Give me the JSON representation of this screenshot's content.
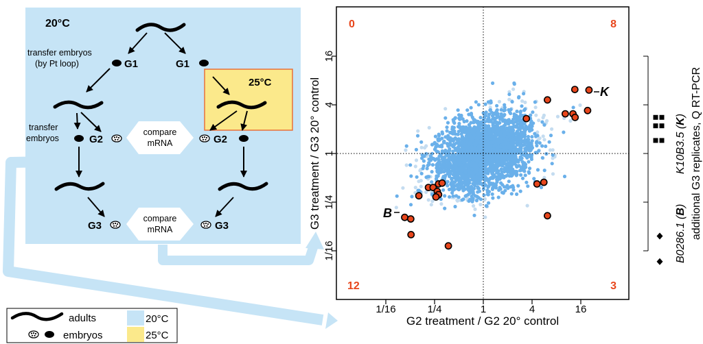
{
  "schematic": {
    "temp_20": "20°C",
    "temp_25": "25°C",
    "transfer_embryos_loop_1": "transfer embryos",
    "transfer_embryos_loop_2": "(by Pt loop)",
    "transfer_embryos_2_1": "transfer",
    "transfer_embryos_2_2": "embryos",
    "gen_g1": "G1",
    "gen_g2": "G2",
    "gen_g3": "G3",
    "compare_1": "compare",
    "compare_2": "mRNA"
  },
  "legend": {
    "adults": "adults",
    "embryos": "embryos",
    "temp_20": "20°C",
    "temp_25": "25°C"
  },
  "colors": {
    "box_20": "#c6e4f6",
    "box_25": "#fbe98b",
    "box_25_border": "#e8703a",
    "points": "#6ab0ea",
    "points_light": "#c4dcf0",
    "highlight_fill": "#e8461c",
    "quadrant_count": "#e8461c"
  },
  "scatter": {
    "xlabel": "G2 treatment / G2 20° control",
    "ylabel": "G3 treatment / G3 20° control",
    "x_ticks": [
      "1/16",
      "1/4",
      "1",
      "4",
      "16"
    ],
    "y_ticks": [
      "1/16",
      "1/4",
      "1",
      "4",
      "16"
    ],
    "quadrant_counts": {
      "top_left": "0",
      "top_right": "8",
      "bottom_left": "12",
      "bottom_right": "3"
    },
    "label_k": "K",
    "label_b": "B"
  },
  "chart_data": {
    "type": "scatter",
    "xlabel": "G2 treatment / G2 20° control",
    "ylabel": "G3 treatment / G3 20° control",
    "x_scale": "log2",
    "y_scale": "log2",
    "xlim": [
      0.03,
      64
    ],
    "ylim": [
      0.03,
      64
    ],
    "reference_lines": {
      "x": 1,
      "y": 1,
      "style": "dotted"
    },
    "quadrant_counts": {
      "top_left": 0,
      "top_right": 8,
      "bottom_left": 12,
      "bottom_right": 3
    },
    "highlighted_points": [
      {
        "x": 20.2,
        "y": 6.1,
        "label": "K"
      },
      {
        "x": 13.5,
        "y": 6.2
      },
      {
        "x": 6.2,
        "y": 4.6
      },
      {
        "x": 3.4,
        "y": 2.7
      },
      {
        "x": 10.3,
        "y": 3.1
      },
      {
        "x": 12.8,
        "y": 3.1
      },
      {
        "x": 13.6,
        "y": 2.8
      },
      {
        "x": 19.4,
        "y": 3.4
      },
      {
        "x": 4.6,
        "y": 0.42
      },
      {
        "x": 5.6,
        "y": 0.44
      },
      {
        "x": 6.2,
        "y": 0.17
      },
      {
        "x": 0.107,
        "y": 0.162,
        "label": "B"
      },
      {
        "x": 0.127,
        "y": 0.155
      },
      {
        "x": 0.128,
        "y": 0.099
      },
      {
        "x": 0.16,
        "y": 0.3
      },
      {
        "x": 0.21,
        "y": 0.38
      },
      {
        "x": 0.24,
        "y": 0.38
      },
      {
        "x": 0.27,
        "y": 0.34
      },
      {
        "x": 0.28,
        "y": 0.31
      },
      {
        "x": 0.26,
        "y": 0.29
      },
      {
        "x": 0.28,
        "y": 0.42
      },
      {
        "x": 0.31,
        "y": 0.43
      },
      {
        "x": 0.37,
        "y": 0.072
      }
    ],
    "cloud": {
      "center": [
        1,
        1
      ],
      "spread_x_log2": [
        -4.5,
        5.5
      ],
      "spread_y_log2": [
        -3.2,
        2.6
      ]
    }
  },
  "replicates": {
    "label_k_gene": "K10B3.5",
    "label_k_letter": "K",
    "label_b_gene": "B0286.1",
    "label_b_letter": "B",
    "caption": "additional G3 replicates, Q RT-PCR",
    "k_values": [
      2.7,
      2.2,
      1.4,
      1.6,
      1.0,
      1.05
    ],
    "b_values": [
      0.1,
      0.045
    ]
  }
}
